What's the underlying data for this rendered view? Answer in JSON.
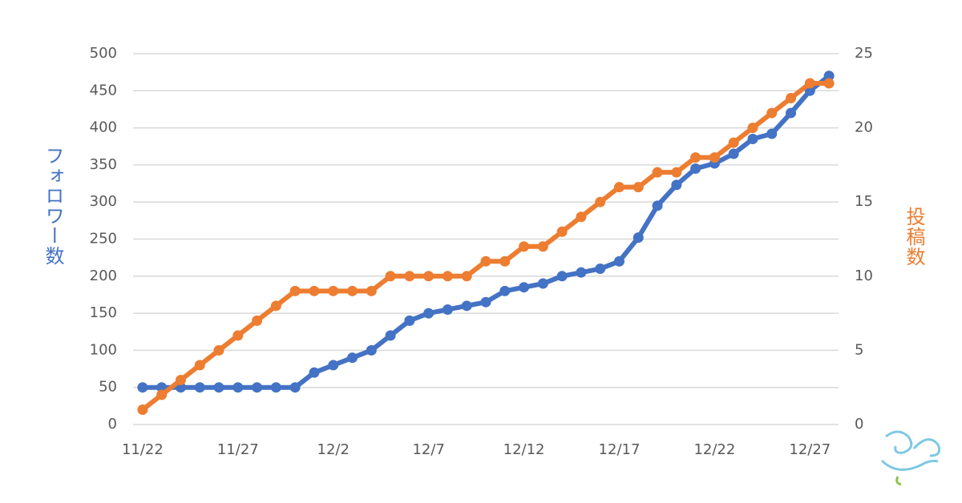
{
  "chart_data": {
    "type": "line",
    "categories": [
      "11/22",
      null,
      null,
      null,
      null,
      "11/27",
      null,
      null,
      null,
      null,
      "12/2",
      null,
      null,
      null,
      null,
      "12/7",
      null,
      null,
      null,
      null,
      "12/12",
      null,
      null,
      null,
      null,
      "12/17",
      null,
      null,
      null,
      null,
      "12/22",
      null,
      null,
      null,
      null,
      "12/27",
      null
    ],
    "series": [
      {
        "name": "フォロワー数",
        "color": "#4472c4",
        "values": [
          50,
          50,
          50,
          50,
          50,
          50,
          50,
          50,
          50,
          70,
          80,
          90,
          100,
          120,
          140,
          150,
          155,
          160,
          165,
          180,
          185,
          190,
          200,
          205,
          210,
          220,
          252,
          295,
          323,
          345,
          352,
          365,
          385,
          392,
          420,
          450,
          470
        ]
      },
      {
        "name": "投稿数",
        "color": "#ed7d31",
        "axis": "y2",
        "values": [
          1,
          2,
          3,
          4,
          5,
          6,
          7,
          8,
          9,
          9,
          9,
          9,
          9,
          10,
          10,
          10,
          10,
          10,
          11,
          11,
          12,
          12,
          13,
          14,
          15,
          16,
          16,
          17,
          17,
          18,
          18,
          19,
          20,
          21,
          22,
          23,
          23
        ]
      }
    ],
    "y_label": "フォロワー数",
    "y2_label": "投稿数",
    "ylim": [
      0,
      500
    ],
    "yticks": [
      0,
      50,
      100,
      150,
      200,
      250,
      300,
      350,
      400,
      450,
      500
    ],
    "y2lim": [
      0,
      25
    ],
    "y2ticks": [
      0,
      5,
      10,
      15,
      20,
      25
    ],
    "grid": true
  }
}
